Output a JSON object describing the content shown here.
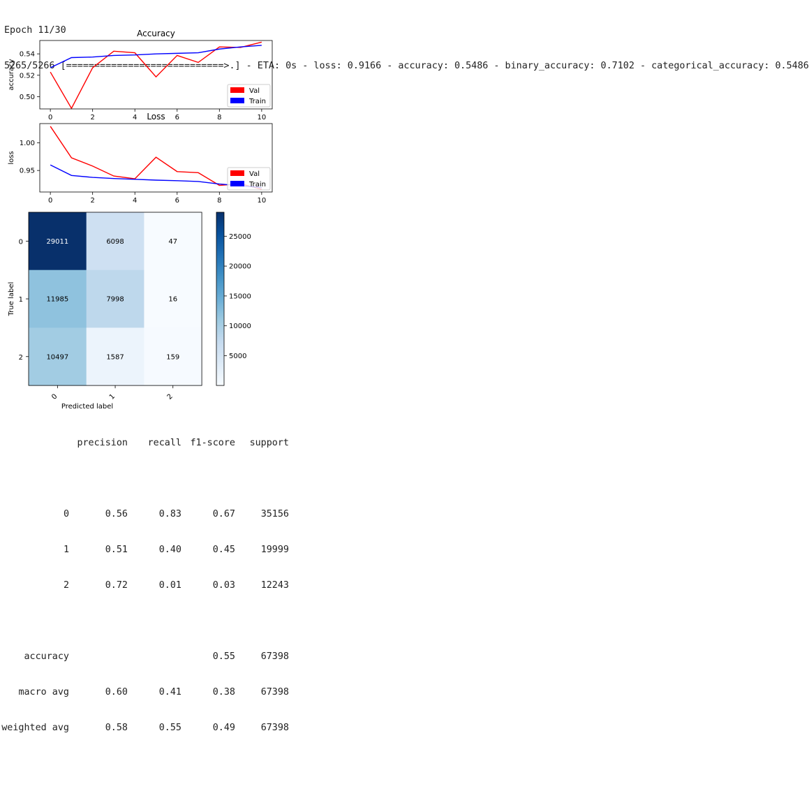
{
  "log": {
    "epoch_line": "Epoch 11/30",
    "progress_line": "5265/5266 [============================>.] - ETA: 0s - loss: 0.9166 - accuracy: 0.5486 - binary_accuracy: 0.7102 - categorical_accuracy: 0.5486"
  },
  "chart_data": [
    {
      "type": "line",
      "title": "Accuracy",
      "xlabel": "",
      "ylabel": "accuracy",
      "x": [
        0,
        1,
        2,
        3,
        4,
        5,
        6,
        7,
        8,
        9,
        10
      ],
      "xticks": [
        "0",
        "2",
        "4",
        "6",
        "8",
        "10"
      ],
      "yticks": [
        "0.50",
        "0.52",
        "0.54"
      ],
      "xlim": [
        -0.5,
        10.5
      ],
      "ylim": [
        0.4885,
        0.5525
      ],
      "series": [
        {
          "name": "Val",
          "color": "#ff0000",
          "values": [
            0.523,
            0.489,
            0.527,
            0.5425,
            0.541,
            0.5185,
            0.5385,
            0.532,
            0.5465,
            0.546,
            0.551
          ]
        },
        {
          "name": "Train",
          "color": "#0000ff",
          "values": [
            0.527,
            0.5365,
            0.537,
            0.5385,
            0.539,
            0.54,
            0.5405,
            0.541,
            0.5445,
            0.5465,
            0.548
          ]
        }
      ],
      "legend": "bottom-right",
      "grid": false
    },
    {
      "type": "line",
      "title": "Loss",
      "xlabel": "",
      "ylabel": "loss",
      "x": [
        0,
        1,
        2,
        3,
        4,
        5,
        6,
        7,
        8,
        9,
        10
      ],
      "xticks": [
        "0",
        "2",
        "4",
        "6",
        "8",
        "10"
      ],
      "yticks": [
        "0.95",
        "1.00"
      ],
      "xlim": [
        -0.5,
        10.5
      ],
      "ylim": [
        0.911,
        1.035
      ],
      "series": [
        {
          "name": "Val",
          "color": "#ff0000",
          "values": [
            1.03,
            0.973,
            0.958,
            0.94,
            0.935,
            0.974,
            0.948,
            0.946,
            0.923,
            0.926,
            0.916
          ]
        },
        {
          "name": "Train",
          "color": "#0000ff",
          "values": [
            0.96,
            0.941,
            0.9375,
            0.9355,
            0.934,
            0.9325,
            0.9315,
            0.93,
            0.9255,
            0.9225,
            0.919
          ]
        }
      ],
      "legend": "bottom-right",
      "grid": false
    },
    {
      "type": "heatmap",
      "title": "",
      "xlabel": "Predicted label",
      "ylabel": "True label",
      "x_categories": [
        "0",
        "1",
        "2"
      ],
      "y_categories": [
        "0",
        "1",
        "2"
      ],
      "values": [
        [
          29011,
          6098,
          47
        ],
        [
          11985,
          7998,
          16
        ],
        [
          10497,
          1587,
          159
        ]
      ],
      "colormap": "Blues",
      "colorbar_ticks": [
        "5000",
        "10000",
        "15000",
        "20000",
        "25000"
      ],
      "colorbar_tick_values": [
        5000,
        10000,
        15000,
        20000,
        25000
      ],
      "vmin": 16,
      "vmax": 29011
    }
  ],
  "report": {
    "headers": [
      "precision",
      "recall",
      "f1-score",
      "support"
    ],
    "class_rows": [
      [
        "0",
        "0.56",
        "0.83",
        "0.67",
        "35156"
      ],
      [
        "1",
        "0.51",
        "0.40",
        "0.45",
        "19999"
      ],
      [
        "2",
        "0.72",
        "0.01",
        "0.03",
        "12243"
      ]
    ],
    "summary_rows": [
      [
        "accuracy",
        "",
        "",
        "0.55",
        "67398"
      ],
      [
        "macro avg",
        "0.60",
        "0.41",
        "0.38",
        "67398"
      ],
      [
        "weighted avg",
        "0.58",
        "0.55",
        "0.49",
        "67398"
      ]
    ]
  }
}
